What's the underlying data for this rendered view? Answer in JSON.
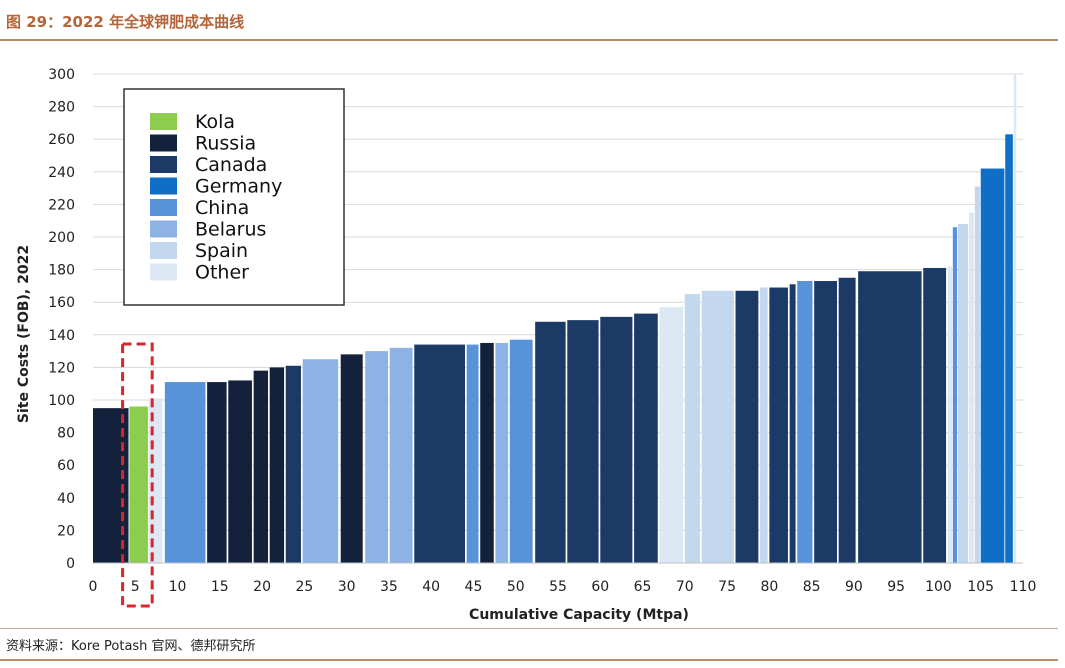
{
  "figure": {
    "title": "图 29：2022 年全球钾肥成本曲线",
    "source": "资料来源：Kore Potash 官网、德邦研究所"
  },
  "colors": {
    "Kola": "#8ccc4e",
    "Russia": "#13213d",
    "Canada": "#1c3a66",
    "Germany": "#0f6fc6",
    "China": "#5892d8",
    "Belarus": "#8cb3e3",
    "Spain": "#c3d7ef",
    "Other": "#dde8f5",
    "highlight": "#d9262a"
  },
  "chart_data": {
    "type": "bar",
    "title": "",
    "xlabel": "Cumulative Capacity (Mtpa)",
    "ylabel": "Site Costs (FOB), 2022",
    "xlim": [
      0,
      110
    ],
    "ylim": [
      0,
      300
    ],
    "x_ticks": [
      0,
      5,
      10,
      15,
      20,
      25,
      30,
      35,
      40,
      45,
      50,
      55,
      60,
      65,
      70,
      75,
      80,
      85,
      90,
      95,
      100,
      105,
      110
    ],
    "y_ticks": [
      0,
      20,
      40,
      60,
      80,
      100,
      120,
      140,
      160,
      180,
      200,
      220,
      240,
      260,
      280,
      300
    ],
    "legend": [
      "Kola",
      "Russia",
      "Canada",
      "Germany",
      "China",
      "Belarus",
      "Spain",
      "Other"
    ],
    "highlight_range": [
      3.5,
      7
    ],
    "segments": [
      {
        "x0": 0,
        "x1": 4.2,
        "cost": 95,
        "group": "Russia"
      },
      {
        "x0": 4.3,
        "x1": 6.5,
        "cost": 96,
        "group": "Kola"
      },
      {
        "x0": 6.6,
        "x1": 8.2,
        "cost": 101,
        "group": "Other"
      },
      {
        "x0": 8.5,
        "x1": 13.3,
        "cost": 111,
        "group": "China"
      },
      {
        "x0": 13.5,
        "x1": 15.8,
        "cost": 111,
        "group": "Russia"
      },
      {
        "x0": 16.0,
        "x1": 18.8,
        "cost": 112,
        "group": "Russia"
      },
      {
        "x0": 19.0,
        "x1": 20.7,
        "cost": 118,
        "group": "Russia"
      },
      {
        "x0": 20.9,
        "x1": 22.6,
        "cost": 120,
        "group": "Russia"
      },
      {
        "x0": 22.8,
        "x1": 24.6,
        "cost": 121,
        "group": "Canada"
      },
      {
        "x0": 24.8,
        "x1": 29.0,
        "cost": 125,
        "group": "Belarus"
      },
      {
        "x0": 29.3,
        "x1": 31.9,
        "cost": 128,
        "group": "Russia"
      },
      {
        "x0": 32.2,
        "x1": 34.9,
        "cost": 130,
        "group": "Belarus"
      },
      {
        "x0": 35.1,
        "x1": 37.8,
        "cost": 132,
        "group": "Belarus"
      },
      {
        "x0": 38.0,
        "x1": 44.0,
        "cost": 134,
        "group": "Canada"
      },
      {
        "x0": 44.2,
        "x1": 45.6,
        "cost": 134,
        "group": "China"
      },
      {
        "x0": 45.8,
        "x1": 47.4,
        "cost": 135,
        "group": "Russia"
      },
      {
        "x0": 47.6,
        "x1": 49.1,
        "cost": 135,
        "group": "Belarus"
      },
      {
        "x0": 49.3,
        "x1": 52.0,
        "cost": 137,
        "group": "China"
      },
      {
        "x0": 52.3,
        "x1": 55.9,
        "cost": 148,
        "group": "Canada"
      },
      {
        "x0": 56.1,
        "x1": 59.8,
        "cost": 149,
        "group": "Canada"
      },
      {
        "x0": 60.0,
        "x1": 63.8,
        "cost": 151,
        "group": "Canada"
      },
      {
        "x0": 64.0,
        "x1": 66.8,
        "cost": 153,
        "group": "Canada"
      },
      {
        "x0": 67.0,
        "x1": 69.8,
        "cost": 157,
        "group": "Other"
      },
      {
        "x0": 70.0,
        "x1": 71.8,
        "cost": 165,
        "group": "Spain"
      },
      {
        "x0": 72.0,
        "x1": 75.8,
        "cost": 167,
        "group": "Spain"
      },
      {
        "x0": 76.0,
        "x1": 78.7,
        "cost": 167,
        "group": "Canada"
      },
      {
        "x0": 78.9,
        "x1": 79.8,
        "cost": 169,
        "group": "Spain"
      },
      {
        "x0": 80.0,
        "x1": 82.2,
        "cost": 169,
        "group": "Canada"
      },
      {
        "x0": 82.4,
        "x1": 83.1,
        "cost": 171,
        "group": "Canada"
      },
      {
        "x0": 83.3,
        "x1": 85.1,
        "cost": 173,
        "group": "China"
      },
      {
        "x0": 85.3,
        "x1": 88.0,
        "cost": 173,
        "group": "Canada"
      },
      {
        "x0": 88.2,
        "x1": 90.2,
        "cost": 175,
        "group": "Canada"
      },
      {
        "x0": 90.5,
        "x1": 98.0,
        "cost": 179,
        "group": "Canada"
      },
      {
        "x0": 98.2,
        "x1": 100.9,
        "cost": 181,
        "group": "Canada"
      },
      {
        "x0": 101.1,
        "x1": 101.6,
        "cost": 182,
        "group": "Other"
      },
      {
        "x0": 101.7,
        "x1": 102.2,
        "cost": 206,
        "group": "China"
      },
      {
        "x0": 102.3,
        "x1": 103.5,
        "cost": 208,
        "group": "Spain"
      },
      {
        "x0": 103.6,
        "x1": 104.2,
        "cost": 215,
        "group": "Other"
      },
      {
        "x0": 104.3,
        "x1": 104.9,
        "cost": 231,
        "group": "Spain"
      },
      {
        "x0": 105.0,
        "x1": 107.8,
        "cost": 242,
        "group": "Germany"
      },
      {
        "x0": 107.9,
        "x1": 108.8,
        "cost": 263,
        "group": "Germany"
      },
      {
        "x0": 108.9,
        "x1": 109.2,
        "cost": 300,
        "group": "Other"
      }
    ]
  }
}
